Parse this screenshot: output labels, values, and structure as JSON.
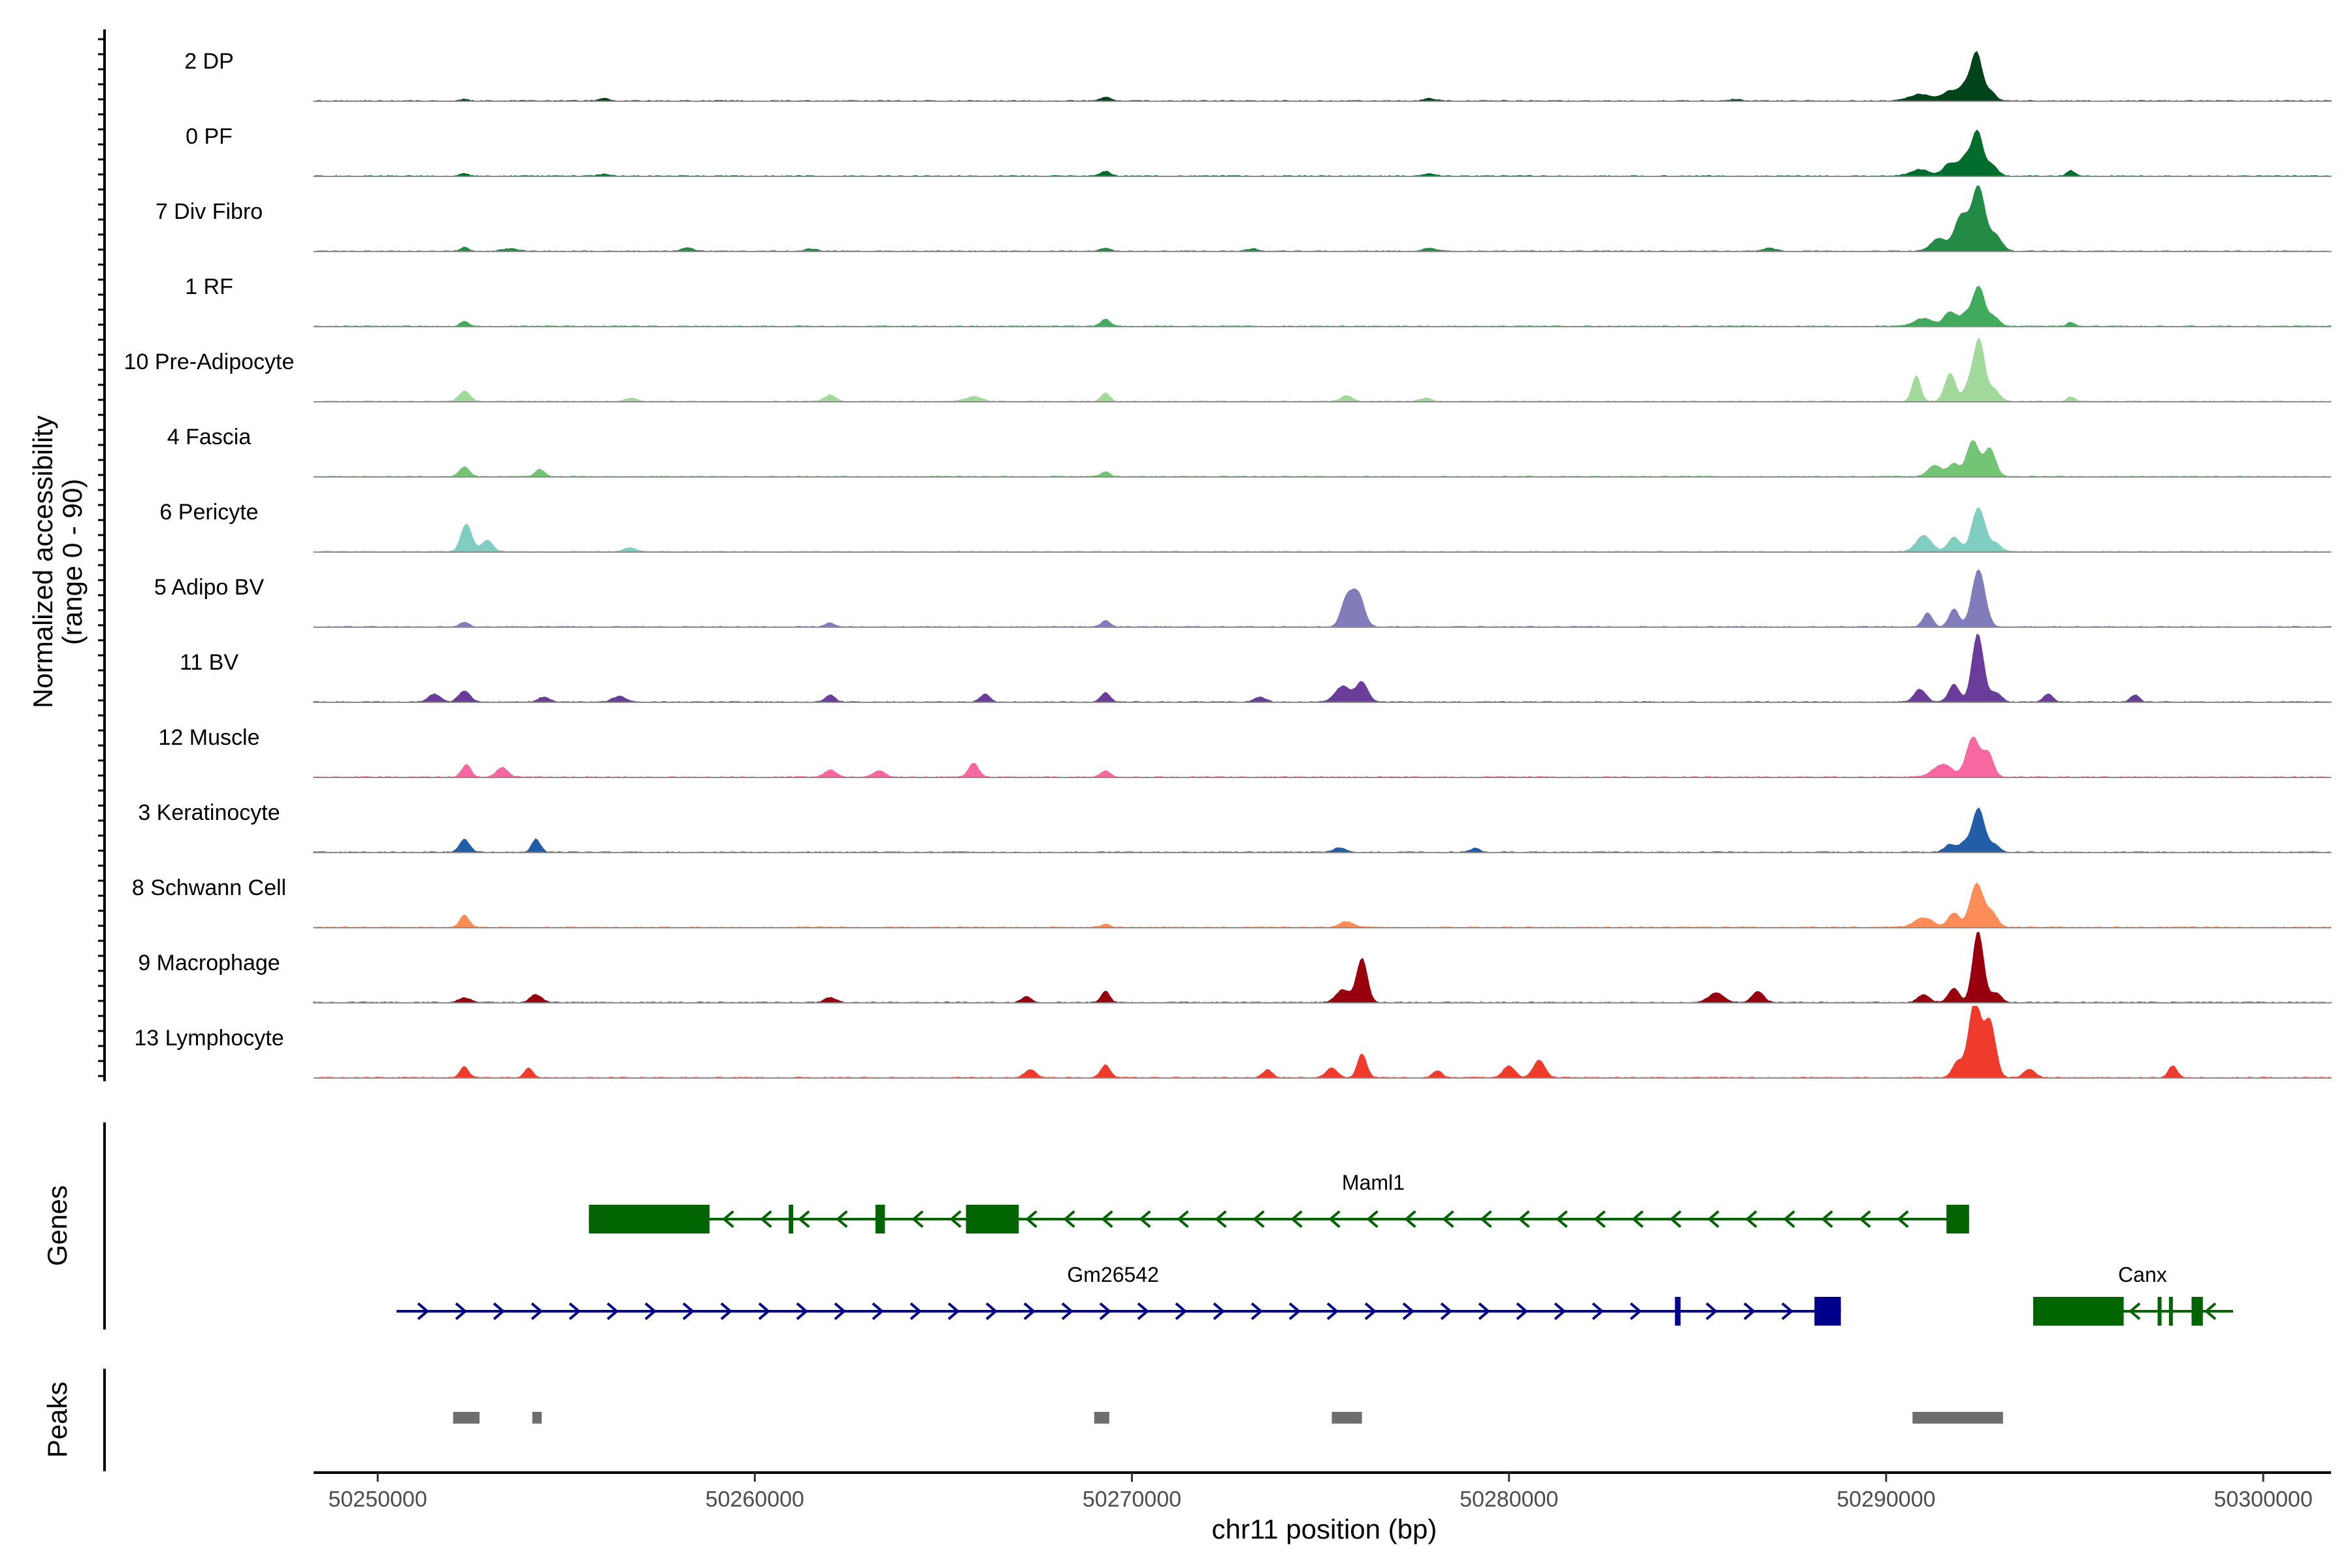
{
  "chart_data": {
    "type": "area",
    "xlabel": "chr11 position (bp)",
    "ylabel": "Normalized accessibility",
    "ylabel_range": "(range 0 - 90)",
    "ylim": [
      0,
      90
    ],
    "xlim": [
      50248300,
      50301800
    ],
    "x_ticks": [
      50250000,
      50260000,
      50270000,
      50280000,
      50290000,
      50300000
    ],
    "x_tick_labels": [
      "50250000",
      "50260000",
      "50270000",
      "50280000",
      "50290000",
      "50300000"
    ],
    "panel_labels": {
      "genes": "Genes",
      "peaks": "Peaks"
    },
    "baseline_color": "#8c8c8c",
    "series": [
      {
        "name": "2 DP",
        "color": "#00441b",
        "peaks": [
          [
            50252300,
            2,
            100
          ],
          [
            50256000,
            3,
            140
          ],
          [
            50269300,
            5,
            120
          ],
          [
            50277900,
            3,
            160
          ],
          [
            50286000,
            2,
            150
          ],
          [
            50290900,
            8,
            300
          ],
          [
            50291700,
            12,
            200
          ],
          [
            50292100,
            18,
            160
          ],
          [
            50292400,
            58,
            140
          ],
          [
            50292750,
            12,
            150
          ]
        ]
      },
      {
        "name": "0 PF",
        "color": "#006d2c",
        "peaks": [
          [
            50252300,
            3,
            100
          ],
          [
            50256000,
            2,
            150
          ],
          [
            50269300,
            6,
            120
          ],
          [
            50277900,
            3,
            160
          ],
          [
            50290900,
            8,
            250
          ],
          [
            50291700,
            16,
            180
          ],
          [
            50292100,
            22,
            150
          ],
          [
            50292420,
            55,
            140
          ],
          [
            50292800,
            14,
            150
          ],
          [
            50294900,
            7,
            100
          ]
        ]
      },
      {
        "name": "7 Div Fibro",
        "color": "#238b45",
        "peaks": [
          [
            50252300,
            5,
            100
          ],
          [
            50253500,
            3,
            200
          ],
          [
            50258200,
            4,
            150
          ],
          [
            50261500,
            3,
            150
          ],
          [
            50269300,
            4,
            120
          ],
          [
            50273200,
            3,
            150
          ],
          [
            50277900,
            4,
            160
          ],
          [
            50286900,
            4,
            160
          ],
          [
            50291400,
            16,
            200
          ],
          [
            50292000,
            45,
            180
          ],
          [
            50292450,
            80,
            170
          ],
          [
            50292900,
            20,
            160
          ]
        ]
      },
      {
        "name": "1 RF",
        "color": "#41ab5d",
        "peaks": [
          [
            50252300,
            6,
            110
          ],
          [
            50269300,
            9,
            120
          ],
          [
            50291000,
            10,
            250
          ],
          [
            50291700,
            18,
            160
          ],
          [
            50292100,
            14,
            140
          ],
          [
            50292450,
            50,
            150
          ],
          [
            50292850,
            12,
            150
          ],
          [
            50294900,
            5,
            100
          ]
        ]
      },
      {
        "name": "10 Pre-Adipocyte",
        "color": "#a1d99b",
        "peaks": [
          [
            50252300,
            13,
            140
          ],
          [
            50256700,
            4,
            160
          ],
          [
            50262000,
            8,
            150
          ],
          [
            50265800,
            6,
            200
          ],
          [
            50269300,
            11,
            110
          ],
          [
            50275700,
            7,
            150
          ],
          [
            50277800,
            4,
            150
          ],
          [
            50290800,
            32,
            110
          ],
          [
            50291700,
            35,
            140
          ],
          [
            50292200,
            20,
            140
          ],
          [
            50292470,
            75,
            140
          ],
          [
            50292850,
            15,
            150
          ],
          [
            50294900,
            6,
            100
          ]
        ]
      },
      {
        "name": "4 Fascia",
        "color": "#74c476",
        "peaks": [
          [
            50252300,
            12,
            130
          ],
          [
            50254300,
            9,
            120
          ],
          [
            50269300,
            6,
            110
          ],
          [
            50291300,
            14,
            180
          ],
          [
            50291800,
            16,
            150
          ],
          [
            50292300,
            45,
            160
          ],
          [
            50292750,
            35,
            150
          ]
        ]
      },
      {
        "name": "6 Pericyte",
        "color": "#80cdc1",
        "peaks": [
          [
            50252350,
            35,
            140
          ],
          [
            50252900,
            14,
            150
          ],
          [
            50256700,
            5,
            150
          ],
          [
            50291000,
            20,
            200
          ],
          [
            50291800,
            18,
            160
          ],
          [
            50292450,
            55,
            170
          ],
          [
            50292900,
            10,
            150
          ]
        ]
      },
      {
        "name": "5 Adipo BV",
        "color": "#807dba",
        "peaks": [
          [
            50252300,
            6,
            120
          ],
          [
            50262000,
            5,
            120
          ],
          [
            50269300,
            8,
            110
          ],
          [
            50275700,
            35,
            150
          ],
          [
            50276000,
            40,
            160
          ],
          [
            50291100,
            18,
            120
          ],
          [
            50291800,
            22,
            130
          ],
          [
            50292450,
            72,
            170
          ]
        ]
      },
      {
        "name": "11 BV",
        "color": "#6a3d9a",
        "peaks": [
          [
            50251500,
            10,
            150
          ],
          [
            50252300,
            14,
            150
          ],
          [
            50254400,
            6,
            150
          ],
          [
            50256400,
            7,
            180
          ],
          [
            50262000,
            9,
            120
          ],
          [
            50266100,
            10,
            120
          ],
          [
            50269300,
            12,
            120
          ],
          [
            50273400,
            6,
            150
          ],
          [
            50275600,
            20,
            200
          ],
          [
            50276100,
            25,
            150
          ],
          [
            50290900,
            16,
            150
          ],
          [
            50291800,
            22,
            140
          ],
          [
            50292430,
            85,
            150
          ],
          [
            50292900,
            12,
            150
          ],
          [
            50294300,
            10,
            120
          ],
          [
            50296600,
            9,
            110
          ]
        ]
      },
      {
        "name": "12 Muscle",
        "color": "#f768a1",
        "peaks": [
          [
            50252350,
            16,
            120
          ],
          [
            50253300,
            12,
            150
          ],
          [
            50262000,
            9,
            150
          ],
          [
            50263300,
            8,
            150
          ],
          [
            50265800,
            18,
            130
          ],
          [
            50269300,
            8,
            120
          ],
          [
            50291500,
            16,
            250
          ],
          [
            50292300,
            50,
            170
          ],
          [
            50292700,
            30,
            140
          ]
        ]
      },
      {
        "name": "3 Keratinocyte",
        "color": "#225ea8",
        "peaks": [
          [
            50252300,
            16,
            130
          ],
          [
            50254200,
            17,
            110
          ],
          [
            50275500,
            6,
            150
          ],
          [
            50279100,
            5,
            120
          ],
          [
            50291700,
            10,
            150
          ],
          [
            50292100,
            12,
            140
          ],
          [
            50292450,
            55,
            150
          ],
          [
            50292850,
            10,
            150
          ]
        ]
      },
      {
        "name": "8 Schwann Cell",
        "color": "#fc8d59",
        "peaks": [
          [
            50252300,
            15,
            120
          ],
          [
            50269300,
            4,
            120
          ],
          [
            50275700,
            7,
            200
          ],
          [
            50291000,
            12,
            250
          ],
          [
            50291800,
            18,
            150
          ],
          [
            50292400,
            55,
            170
          ],
          [
            50292800,
            18,
            150
          ]
        ]
      },
      {
        "name": "9 Macrophage",
        "color": "#99000d",
        "peaks": [
          [
            50252300,
            6,
            150
          ],
          [
            50254200,
            10,
            150
          ],
          [
            50262000,
            6,
            150
          ],
          [
            50267200,
            8,
            120
          ],
          [
            50269300,
            14,
            110
          ],
          [
            50275600,
            16,
            180
          ],
          [
            50276100,
            55,
            140
          ],
          [
            50285500,
            12,
            200
          ],
          [
            50286600,
            14,
            150
          ],
          [
            50291000,
            10,
            150
          ],
          [
            50291800,
            18,
            140
          ],
          [
            50292440,
            90,
            140
          ],
          [
            50292900,
            12,
            150
          ]
        ]
      },
      {
        "name": "13 Lymphocyte",
        "color": "#ef3b2c",
        "peaks": [
          [
            50252300,
            14,
            110
          ],
          [
            50254000,
            12,
            110
          ],
          [
            50267300,
            10,
            150
          ],
          [
            50269300,
            16,
            120
          ],
          [
            50273600,
            10,
            120
          ],
          [
            50275300,
            12,
            150
          ],
          [
            50276100,
            30,
            120
          ],
          [
            50278100,
            9,
            120
          ],
          [
            50280000,
            15,
            150
          ],
          [
            50280800,
            22,
            150
          ],
          [
            50291900,
            20,
            140
          ],
          [
            50292350,
            95,
            160
          ],
          [
            50292750,
            70,
            150
          ],
          [
            50293800,
            10,
            150
          ],
          [
            50297600,
            15,
            110
          ]
        ]
      }
    ],
    "genes": [
      {
        "name": "Maml1",
        "strand": "-",
        "color": "#006400",
        "row": 0,
        "label_x": 50276400,
        "start": 50255600,
        "end": 50292200,
        "exons": [
          [
            50255600,
            50258800
          ],
          [
            50260900,
            50261020
          ],
          [
            50263200,
            50263450
          ],
          [
            50265600,
            50267000
          ],
          [
            50291600,
            50292200
          ]
        ]
      },
      {
        "name": "Gm26542",
        "strand": "+",
        "color": "#00008b",
        "row": 1,
        "label_x": 50269500,
        "start": 50250500,
        "end": 50288800,
        "exons": [
          [
            50284400,
            50284550
          ],
          [
            50288100,
            50288800
          ]
        ]
      },
      {
        "name": "Canx",
        "strand": "-",
        "color": "#006400",
        "row": 1,
        "label_x": 50296800,
        "start": 50293900,
        "end": 50299200,
        "exons": [
          [
            50293900,
            50296300
          ],
          [
            50297200,
            50297300
          ],
          [
            50297500,
            50297600
          ],
          [
            50298100,
            50298400
          ]
        ]
      }
    ],
    "peaks": [
      [
        50252000,
        50252700
      ],
      [
        50254100,
        50254350
      ],
      [
        50269000,
        50269400
      ],
      [
        50275300,
        50276100
      ],
      [
        50290700,
        50293100
      ]
    ],
    "peak_color": "#6e6e6e"
  }
}
